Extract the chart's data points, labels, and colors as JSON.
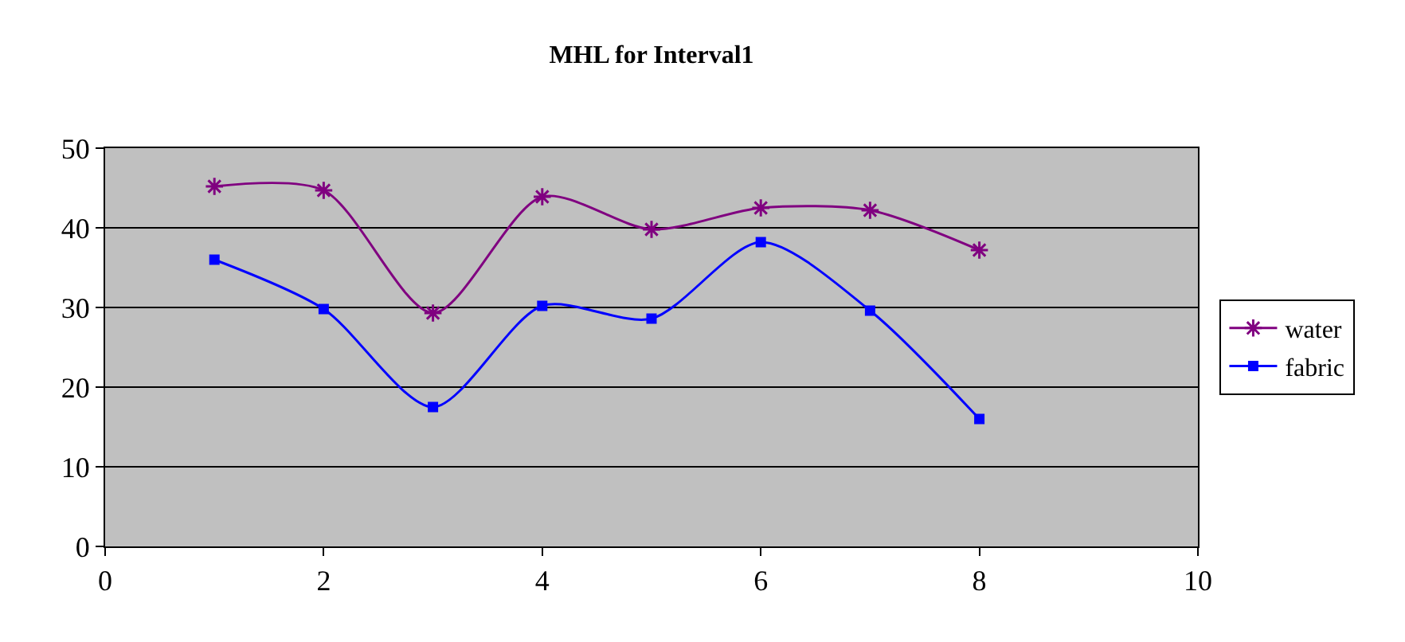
{
  "chart_data": {
    "type": "line",
    "title": "MHL for Interval1",
    "x": [
      1,
      2,
      3,
      4,
      5,
      6,
      7,
      8
    ],
    "series": [
      {
        "name": "water",
        "color": "#800080",
        "marker": "cross",
        "values": [
          45.2,
          44.7,
          29.3,
          43.9,
          39.8,
          42.5,
          42.2,
          37.2
        ]
      },
      {
        "name": "fabric",
        "color": "#0000ff",
        "marker": "square",
        "values": [
          36,
          29.8,
          17.5,
          30.2,
          28.6,
          38.2,
          29.6,
          16
        ]
      }
    ],
    "xlim": [
      0,
      10
    ],
    "xticks": [
      0,
      2,
      4,
      6,
      8,
      10
    ],
    "ylim": [
      0,
      50
    ],
    "yticks": [
      0,
      10,
      20,
      30,
      40,
      50
    ],
    "grid": "y",
    "legend": "right",
    "line_style": "solid"
  }
}
